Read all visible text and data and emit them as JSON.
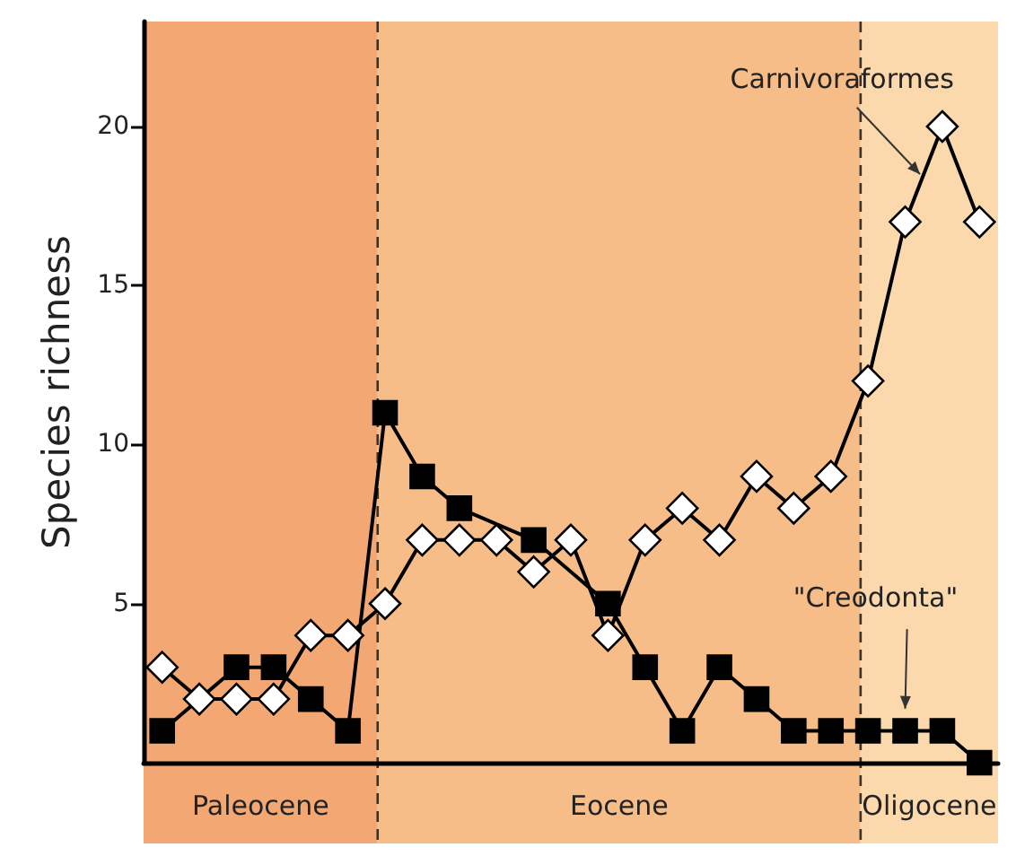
{
  "chart_data": {
    "type": "line",
    "ylabel": "Species richness",
    "categories": [
      null,
      null,
      null,
      null,
      null,
      null,
      null,
      null,
      null,
      null,
      null,
      null,
      null,
      null,
      null,
      null,
      null,
      null,
      null,
      null,
      null,
      null,
      null
    ],
    "ylim": [
      0,
      23.3
    ],
    "yticks": [
      5,
      10,
      15,
      20
    ],
    "tick_labels": "y",
    "line_style": "solid",
    "series": [
      {
        "color": "#ffffff",
        "marker": "diamond",
        "values": [
          3,
          2,
          2,
          2,
          4,
          4,
          5,
          7,
          7,
          7,
          6,
          7,
          4,
          7,
          8,
          7,
          9,
          8,
          9,
          12,
          17,
          20,
          17
        ]
      },
      {
        "color": "#000000",
        "marker": "square",
        "values": [
          1,
          null,
          3,
          3,
          2,
          1,
          11,
          9,
          8,
          null,
          7,
          null,
          5,
          3,
          1,
          3,
          2,
          1,
          1,
          1,
          1,
          1,
          0
        ]
      }
    ],
    "annotations": [
      "Paleocene",
      "Eocene",
      "Oligocene",
      "Carnivoraformes",
      "\"Creodonta\""
    ]
  }
}
